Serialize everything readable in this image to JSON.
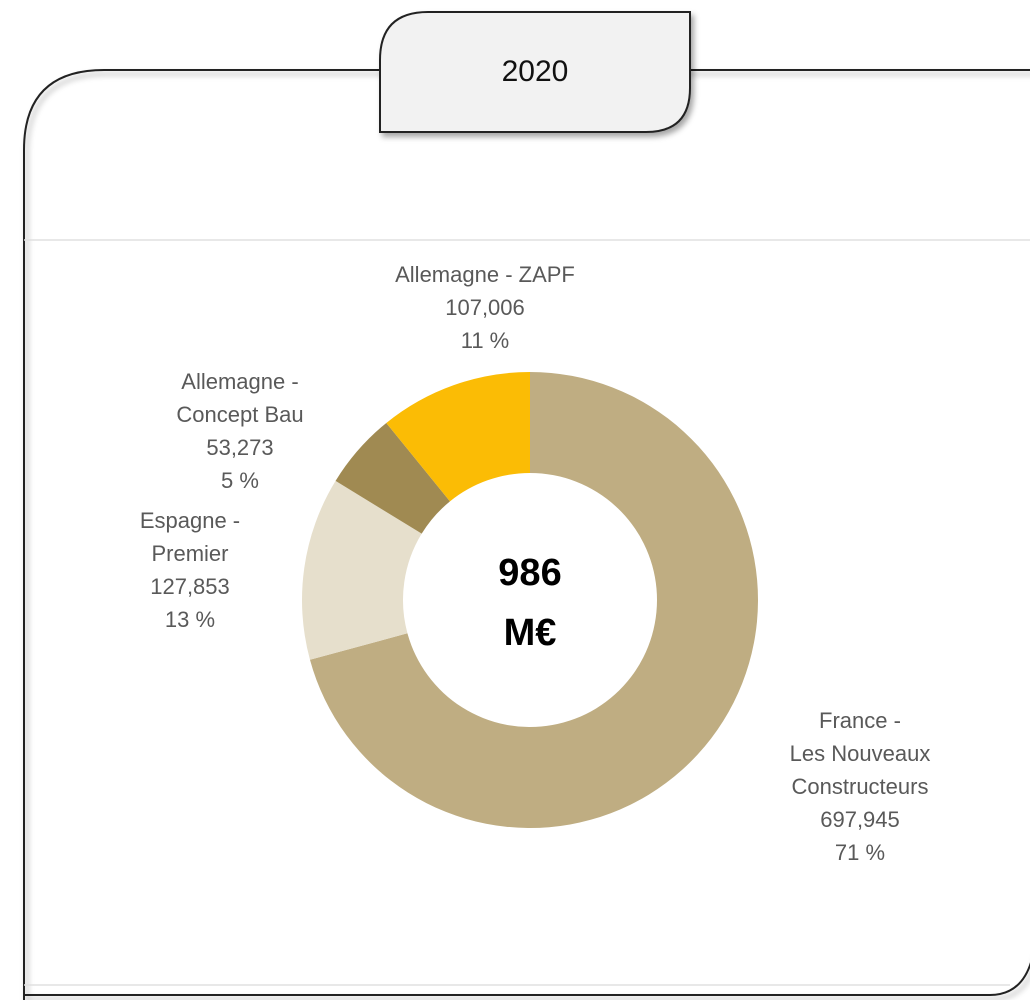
{
  "chart_data": {
    "type": "donut",
    "title": "2020",
    "center_label": [
      "986",
      "M€"
    ],
    "categories": [
      [
        "France -",
        "Les Nouveaux",
        "Constructeurs"
      ],
      [
        "Espagne -",
        "Premier"
      ],
      [
        "Allemagne -",
        "Concept Bau"
      ],
      [
        "Allemagne - ZAPF"
      ]
    ],
    "values": [
      697.945,
      127.853,
      53.273,
      107.006
    ],
    "value_labels": [
      "697,945",
      "127,853",
      "53,273",
      "107,006"
    ],
    "percents": [
      71,
      13,
      5,
      11
    ],
    "percent_labels": [
      "71 %",
      "13 %",
      "5 %",
      "11 %"
    ],
    "colors": [
      "#bfad82",
      "#e6dfcc",
      "#a08a52",
      "#fbbc05"
    ]
  }
}
